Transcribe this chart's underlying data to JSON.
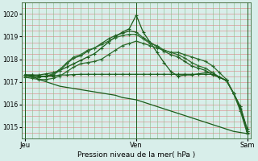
{
  "background_color": "#d8eeea",
  "grid_h_color": "#e08080",
  "grid_v_color": "#88bb88",
  "title": "Pression niveau de la mer( hPa )",
  "ylim": [
    1014.5,
    1020.5
  ],
  "yticks": [
    1015,
    1016,
    1017,
    1018,
    1019,
    1020
  ],
  "xtick_labels": [
    "Jeu",
    "Ven",
    "Sam"
  ],
  "day_positions": [
    0,
    16,
    32
  ],
  "line_color": "#1a5c1a",
  "marker": "+",
  "markersize": 3.5,
  "linewidth": 0.9,
  "n_hgrid": 12,
  "n_vgrid": 32,
  "series": [
    [
      1017.3,
      1017.3,
      1017.3,
      1017.35,
      1017.4,
      1017.5,
      1017.65,
      1017.8,
      1017.95,
      1018.1,
      1018.25,
      1018.5,
      1018.75,
      1019.0,
      1019.2,
      1019.35,
      1019.95,
      1019.2,
      1018.75,
      1018.3,
      1017.85,
      1017.45,
      1017.25,
      1017.3,
      1017.3,
      1017.35,
      1017.4,
      1017.4,
      1017.2,
      1017.05,
      1016.5,
      1015.9,
      1014.9
    ],
    [
      1017.3,
      1017.25,
      1017.2,
      1017.25,
      1017.3,
      1017.5,
      1017.8,
      1018.05,
      1018.15,
      1018.35,
      1018.5,
      1018.7,
      1018.9,
      1019.05,
      1019.15,
      1019.25,
      1019.2,
      1018.95,
      1018.75,
      1018.55,
      1018.35,
      1018.2,
      1018.1,
      1017.9,
      1017.7,
      1017.6,
      1017.5,
      1017.3,
      1017.2,
      1017.05,
      1016.5,
      1015.9,
      1014.8
    ],
    [
      1017.25,
      1017.2,
      1017.2,
      1017.25,
      1017.35,
      1017.55,
      1017.85,
      1018.1,
      1018.2,
      1018.4,
      1018.5,
      1018.65,
      1018.8,
      1018.95,
      1019.05,
      1019.1,
      1019.1,
      1018.9,
      1018.7,
      1018.6,
      1018.4,
      1018.3,
      1018.2,
      1018.05,
      1017.85,
      1017.7,
      1017.6,
      1017.4,
      1017.2,
      1017.05,
      1016.5,
      1015.8,
      1014.8
    ],
    [
      1017.3,
      1017.3,
      1017.25,
      1017.25,
      1017.25,
      1017.3,
      1017.3,
      1017.32,
      1017.33,
      1017.33,
      1017.33,
      1017.33,
      1017.33,
      1017.33,
      1017.33,
      1017.33,
      1017.33,
      1017.33,
      1017.33,
      1017.33,
      1017.33,
      1017.33,
      1017.33,
      1017.33,
      1017.33,
      1017.33,
      1017.33,
      1017.33,
      1017.2,
      1017.05,
      1016.5,
      1015.8,
      1014.75
    ],
    [
      1017.2,
      1017.15,
      1017.1,
      1017.1,
      1017.15,
      1017.25,
      1017.45,
      1017.65,
      1017.8,
      1017.85,
      1017.9,
      1018.0,
      1018.2,
      1018.4,
      1018.6,
      1018.7,
      1018.8,
      1018.7,
      1018.6,
      1018.5,
      1018.4,
      1018.3,
      1018.3,
      1018.2,
      1018.1,
      1018.0,
      1017.9,
      1017.7,
      1017.4,
      1017.1,
      1016.5,
      1015.7,
      1014.7
    ],
    [
      1017.3,
      1017.25,
      1017.1,
      1017.0,
      1016.9,
      1016.8,
      1016.75,
      1016.7,
      1016.65,
      1016.6,
      1016.55,
      1016.5,
      1016.45,
      1016.4,
      1016.3,
      1016.25,
      1016.2,
      1016.1,
      1016.0,
      1015.9,
      1015.8,
      1015.7,
      1015.6,
      1015.5,
      1015.4,
      1015.3,
      1015.2,
      1015.1,
      1015.0,
      1014.9,
      1014.8,
      1014.75,
      1014.7
    ]
  ]
}
